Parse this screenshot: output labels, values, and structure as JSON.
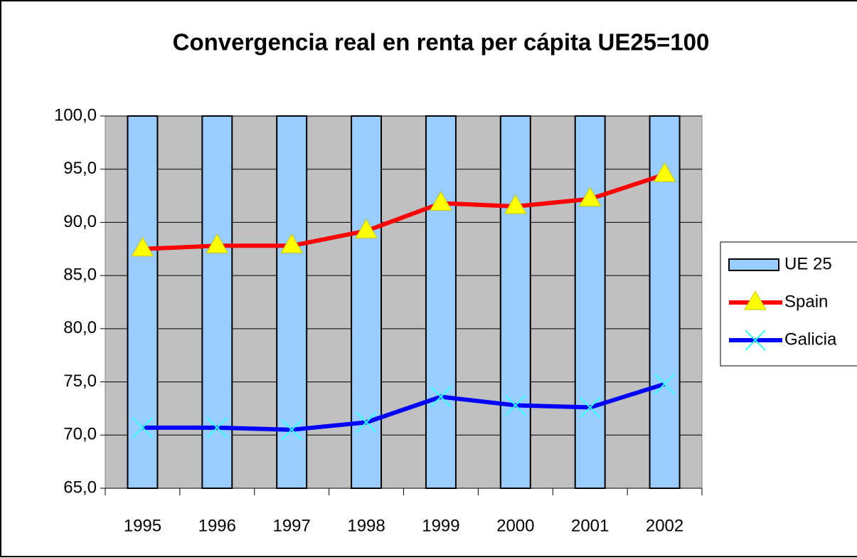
{
  "chart_data": {
    "type": "combo",
    "title": "Convergencia real en renta per cápita UE25=100",
    "categories": [
      "1995",
      "1996",
      "1997",
      "1998",
      "1999",
      "2000",
      "2001",
      "2002"
    ],
    "series": [
      {
        "name": "UE 25",
        "type": "bar",
        "color": "#99ccff",
        "values": [
          100,
          100,
          100,
          100,
          100,
          100,
          100,
          100
        ]
      },
      {
        "name": "Spain",
        "type": "line",
        "color": "#ff0000",
        "marker": "triangle",
        "marker_color": "#ffff00",
        "values": [
          87.5,
          87.8,
          87.8,
          89.2,
          91.8,
          91.5,
          92.2,
          94.5
        ]
      },
      {
        "name": "Galicia",
        "type": "line",
        "color": "#0000ff",
        "marker": "x",
        "marker_color": "#33ffff",
        "values": [
          70.7,
          70.7,
          70.5,
          71.2,
          73.6,
          72.8,
          72.6,
          74.8
        ]
      }
    ],
    "ylim": [
      65,
      100
    ],
    "yticks": [
      {
        "value": 65,
        "label": "65,0"
      },
      {
        "value": 70,
        "label": "70,0"
      },
      {
        "value": 75,
        "label": "75,0"
      },
      {
        "value": 80,
        "label": "80,0"
      },
      {
        "value": 85,
        "label": "85,0"
      },
      {
        "value": 90,
        "label": "90,0"
      },
      {
        "value": 95,
        "label": "95,0"
      },
      {
        "value": 100,
        "label": "100,0"
      }
    ],
    "grid": true,
    "plot_background": "#c0c0c0",
    "legend": "right"
  }
}
